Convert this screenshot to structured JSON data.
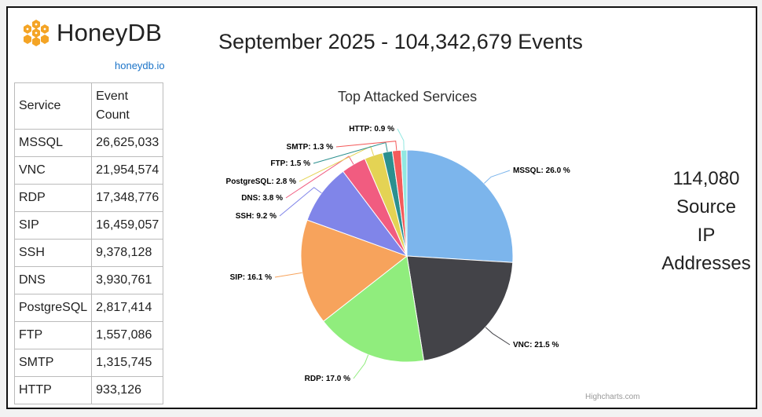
{
  "brand": {
    "name": "HoneyDB",
    "link": "honeydb.io",
    "logo": "honeycomb-icon",
    "logo_color": "#f4a425"
  },
  "header": {
    "title": "September 2025 - 104,342,679 Events"
  },
  "table": {
    "headers": [
      "Service",
      "Event Count"
    ],
    "rows": [
      [
        "MSSQL",
        "26,625,033"
      ],
      [
        "VNC",
        "21,954,574"
      ],
      [
        "RDP",
        "17,348,776"
      ],
      [
        "SIP",
        "16,459,057"
      ],
      [
        "SSH",
        "9,378,128"
      ],
      [
        "DNS",
        "3,930,761"
      ],
      [
        "PostgreSQL",
        "2,817,414"
      ],
      [
        "FTP",
        "1,557,086"
      ],
      [
        "SMTP",
        "1,315,745"
      ],
      [
        "HTTP",
        "933,126"
      ]
    ]
  },
  "ip_summary": {
    "count": "114,080",
    "line1": "Source",
    "line2": "IP",
    "line3": "Addresses"
  },
  "chart_data": {
    "type": "pie",
    "title": "Top Attacked Services",
    "credits": "Highcharts.com",
    "slices": [
      {
        "name": "MSSQL",
        "value": 26.0,
        "label": "MSSQL: 26.0 %",
        "color": "#7cb5ec"
      },
      {
        "name": "VNC",
        "value": 21.5,
        "label": "VNC: 21.5 %",
        "color": "#434348"
      },
      {
        "name": "RDP",
        "value": 17.0,
        "label": "RDP: 17.0 %",
        "color": "#90ed7d"
      },
      {
        "name": "SIP",
        "value": 16.1,
        "label": "SIP: 16.1 %",
        "color": "#f7a35c"
      },
      {
        "name": "SSH",
        "value": 9.2,
        "label": "SSH: 9.2 %",
        "color": "#8085e9"
      },
      {
        "name": "DNS",
        "value": 3.8,
        "label": "DNS: 3.8 %",
        "color": "#f15c80"
      },
      {
        "name": "PostgreSQL",
        "value": 2.8,
        "label": "PostgreSQL: 2.8 %",
        "color": "#e4d354"
      },
      {
        "name": "FTP",
        "value": 1.5,
        "label": "FTP: 1.5 %",
        "color": "#2b908f"
      },
      {
        "name": "SMTP",
        "value": 1.3,
        "label": "SMTP: 1.3 %",
        "color": "#f45b5b"
      },
      {
        "name": "HTTP",
        "value": 0.9,
        "label": "HTTP: 0.9 %",
        "color": "#91e8e1"
      }
    ]
  }
}
